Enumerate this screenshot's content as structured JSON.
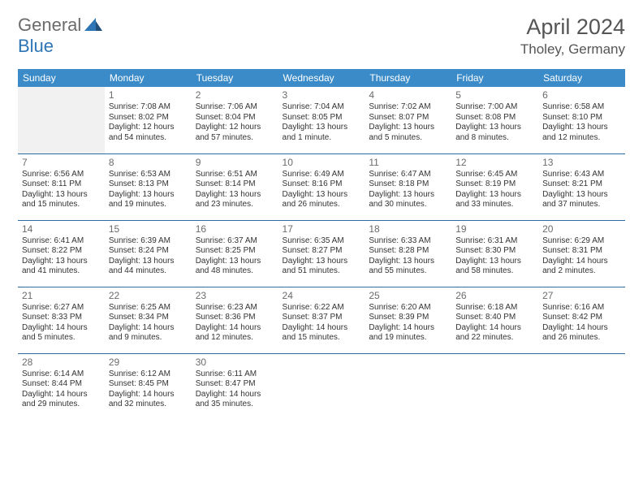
{
  "header": {
    "logo_general": "General",
    "logo_blue": "Blue",
    "month_title": "April 2024",
    "location": "Tholey, Germany"
  },
  "styling": {
    "header_bg": "#3b8bc9",
    "header_text": "#ffffff",
    "row_divider": "#2e6da4",
    "empty_cell_bg": "#f1f1f1",
    "body_text": "#333333",
    "daynum_color": "#6b6b6b",
    "logo_gray": "#6b6b6b",
    "logo_blue": "#2e75b6",
    "title_color": "#555555",
    "font_family": "Arial",
    "th_fontsize": 12,
    "cell_fontsize": 10,
    "daynum_fontsize": 12,
    "title_fontsize": 27,
    "location_fontsize": 17
  },
  "weekdays": [
    "Sunday",
    "Monday",
    "Tuesday",
    "Wednesday",
    "Thursday",
    "Friday",
    "Saturday"
  ],
  "days": {
    "1": {
      "sunrise": "Sunrise: 7:08 AM",
      "sunset": "Sunset: 8:02 PM",
      "daylight": "Daylight: 12 hours and 54 minutes."
    },
    "2": {
      "sunrise": "Sunrise: 7:06 AM",
      "sunset": "Sunset: 8:04 PM",
      "daylight": "Daylight: 12 hours and 57 minutes."
    },
    "3": {
      "sunrise": "Sunrise: 7:04 AM",
      "sunset": "Sunset: 8:05 PM",
      "daylight": "Daylight: 13 hours and 1 minute."
    },
    "4": {
      "sunrise": "Sunrise: 7:02 AM",
      "sunset": "Sunset: 8:07 PM",
      "daylight": "Daylight: 13 hours and 5 minutes."
    },
    "5": {
      "sunrise": "Sunrise: 7:00 AM",
      "sunset": "Sunset: 8:08 PM",
      "daylight": "Daylight: 13 hours and 8 minutes."
    },
    "6": {
      "sunrise": "Sunrise: 6:58 AM",
      "sunset": "Sunset: 8:10 PM",
      "daylight": "Daylight: 13 hours and 12 minutes."
    },
    "7": {
      "sunrise": "Sunrise: 6:56 AM",
      "sunset": "Sunset: 8:11 PM",
      "daylight": "Daylight: 13 hours and 15 minutes."
    },
    "8": {
      "sunrise": "Sunrise: 6:53 AM",
      "sunset": "Sunset: 8:13 PM",
      "daylight": "Daylight: 13 hours and 19 minutes."
    },
    "9": {
      "sunrise": "Sunrise: 6:51 AM",
      "sunset": "Sunset: 8:14 PM",
      "daylight": "Daylight: 13 hours and 23 minutes."
    },
    "10": {
      "sunrise": "Sunrise: 6:49 AM",
      "sunset": "Sunset: 8:16 PM",
      "daylight": "Daylight: 13 hours and 26 minutes."
    },
    "11": {
      "sunrise": "Sunrise: 6:47 AM",
      "sunset": "Sunset: 8:18 PM",
      "daylight": "Daylight: 13 hours and 30 minutes."
    },
    "12": {
      "sunrise": "Sunrise: 6:45 AM",
      "sunset": "Sunset: 8:19 PM",
      "daylight": "Daylight: 13 hours and 33 minutes."
    },
    "13": {
      "sunrise": "Sunrise: 6:43 AM",
      "sunset": "Sunset: 8:21 PM",
      "daylight": "Daylight: 13 hours and 37 minutes."
    },
    "14": {
      "sunrise": "Sunrise: 6:41 AM",
      "sunset": "Sunset: 8:22 PM",
      "daylight": "Daylight: 13 hours and 41 minutes."
    },
    "15": {
      "sunrise": "Sunrise: 6:39 AM",
      "sunset": "Sunset: 8:24 PM",
      "daylight": "Daylight: 13 hours and 44 minutes."
    },
    "16": {
      "sunrise": "Sunrise: 6:37 AM",
      "sunset": "Sunset: 8:25 PM",
      "daylight": "Daylight: 13 hours and 48 minutes."
    },
    "17": {
      "sunrise": "Sunrise: 6:35 AM",
      "sunset": "Sunset: 8:27 PM",
      "daylight": "Daylight: 13 hours and 51 minutes."
    },
    "18": {
      "sunrise": "Sunrise: 6:33 AM",
      "sunset": "Sunset: 8:28 PM",
      "daylight": "Daylight: 13 hours and 55 minutes."
    },
    "19": {
      "sunrise": "Sunrise: 6:31 AM",
      "sunset": "Sunset: 8:30 PM",
      "daylight": "Daylight: 13 hours and 58 minutes."
    },
    "20": {
      "sunrise": "Sunrise: 6:29 AM",
      "sunset": "Sunset: 8:31 PM",
      "daylight": "Daylight: 14 hours and 2 minutes."
    },
    "21": {
      "sunrise": "Sunrise: 6:27 AM",
      "sunset": "Sunset: 8:33 PM",
      "daylight": "Daylight: 14 hours and 5 minutes."
    },
    "22": {
      "sunrise": "Sunrise: 6:25 AM",
      "sunset": "Sunset: 8:34 PM",
      "daylight": "Daylight: 14 hours and 9 minutes."
    },
    "23": {
      "sunrise": "Sunrise: 6:23 AM",
      "sunset": "Sunset: 8:36 PM",
      "daylight": "Daylight: 14 hours and 12 minutes."
    },
    "24": {
      "sunrise": "Sunrise: 6:22 AM",
      "sunset": "Sunset: 8:37 PM",
      "daylight": "Daylight: 14 hours and 15 minutes."
    },
    "25": {
      "sunrise": "Sunrise: 6:20 AM",
      "sunset": "Sunset: 8:39 PM",
      "daylight": "Daylight: 14 hours and 19 minutes."
    },
    "26": {
      "sunrise": "Sunrise: 6:18 AM",
      "sunset": "Sunset: 8:40 PM",
      "daylight": "Daylight: 14 hours and 22 minutes."
    },
    "27": {
      "sunrise": "Sunrise: 6:16 AM",
      "sunset": "Sunset: 8:42 PM",
      "daylight": "Daylight: 14 hours and 26 minutes."
    },
    "28": {
      "sunrise": "Sunrise: 6:14 AM",
      "sunset": "Sunset: 8:44 PM",
      "daylight": "Daylight: 14 hours and 29 minutes."
    },
    "29": {
      "sunrise": "Sunrise: 6:12 AM",
      "sunset": "Sunset: 8:45 PM",
      "daylight": "Daylight: 14 hours and 32 minutes."
    },
    "30": {
      "sunrise": "Sunrise: 6:11 AM",
      "sunset": "Sunset: 8:47 PM",
      "daylight": "Daylight: 14 hours and 35 minutes."
    }
  },
  "grid": [
    [
      null,
      1,
      2,
      3,
      4,
      5,
      6
    ],
    [
      7,
      8,
      9,
      10,
      11,
      12,
      13
    ],
    [
      14,
      15,
      16,
      17,
      18,
      19,
      20
    ],
    [
      21,
      22,
      23,
      24,
      25,
      26,
      27
    ],
    [
      28,
      29,
      30,
      null,
      null,
      null,
      null
    ]
  ]
}
